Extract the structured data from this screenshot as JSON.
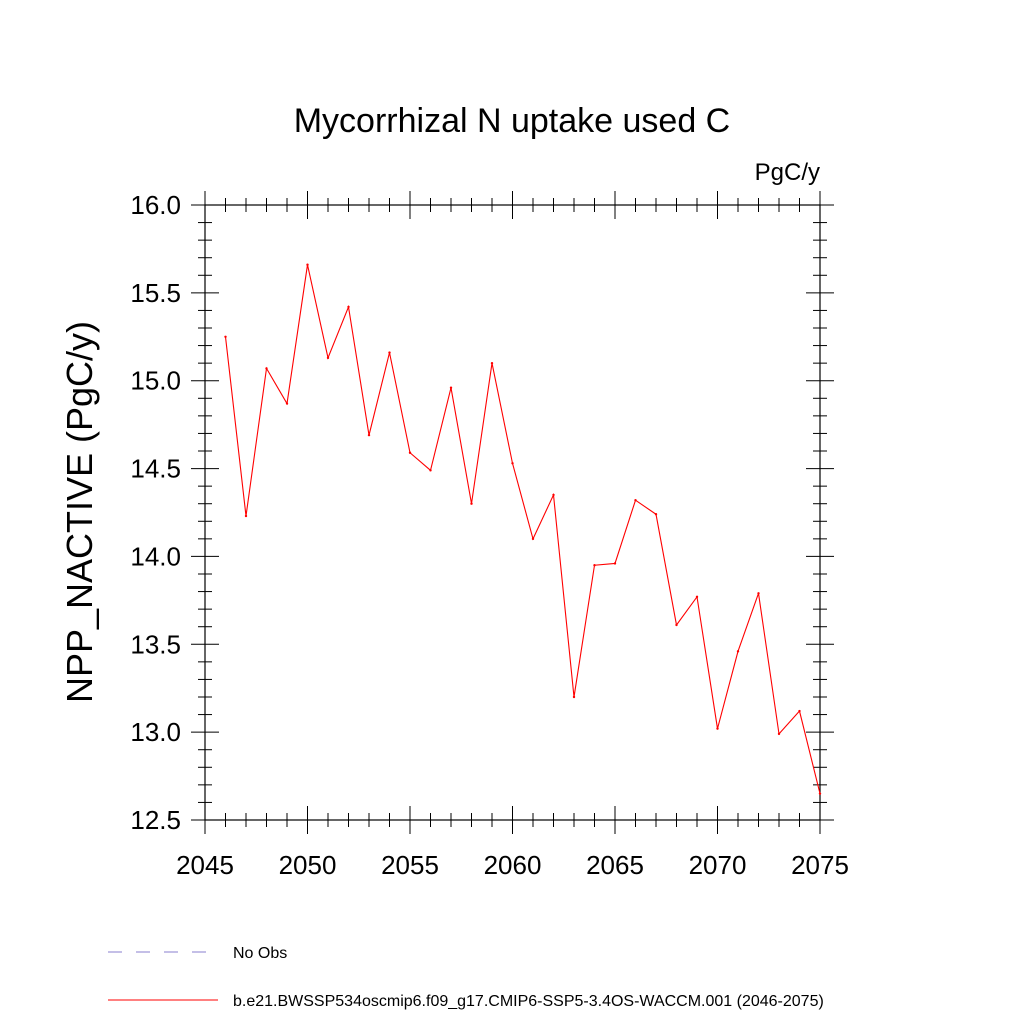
{
  "chart_data": {
    "type": "line",
    "title": "Mycorrhizal N uptake used C",
    "units_label": "PgC/y",
    "ylabel": "NPP_NACTIVE  (PgC/y)",
    "xlabel": "",
    "xlim": [
      2045,
      2075
    ],
    "ylim": [
      12.5,
      16.0
    ],
    "xticks": [
      2045,
      2050,
      2055,
      2060,
      2065,
      2070,
      2075
    ],
    "yticks": [
      "12.5",
      "13.0",
      "13.5",
      "14.0",
      "14.5",
      "15.0",
      "15.5",
      "16.0"
    ],
    "grid": false,
    "legend_position": "bottom-left",
    "series": [
      {
        "name": "b.e21.BWSSP534oscmip6.f09_g17.CMIP6-SSP5-3.4OS-WACCM.001 (2046-2075)",
        "color": "#ff0000",
        "x": [
          2046,
          2047,
          2048,
          2049,
          2050,
          2051,
          2052,
          2053,
          2054,
          2055,
          2056,
          2057,
          2058,
          2059,
          2060,
          2061,
          2062,
          2063,
          2064,
          2065,
          2066,
          2067,
          2068,
          2069,
          2070,
          2071,
          2072,
          2073,
          2074,
          2075
        ],
        "values": [
          15.25,
          14.23,
          15.07,
          14.87,
          15.66,
          15.13,
          15.42,
          14.69,
          15.16,
          14.59,
          14.49,
          14.96,
          14.3,
          15.1,
          14.53,
          14.1,
          14.35,
          13.2,
          13.95,
          13.96,
          14.32,
          14.24,
          13.61,
          13.77,
          13.02,
          13.46,
          13.79,
          12.99,
          13.12,
          12.65
        ]
      }
    ],
    "legend": [
      {
        "label": "No Obs",
        "color": "#8a7fcf",
        "dash": true
      },
      {
        "label": "b.e21.BWSSP534oscmip6.f09_g17.CMIP6-SSP5-3.4OS-WACCM.001 (2046-2075)",
        "color": "#ff0000",
        "dash": false
      }
    ]
  }
}
